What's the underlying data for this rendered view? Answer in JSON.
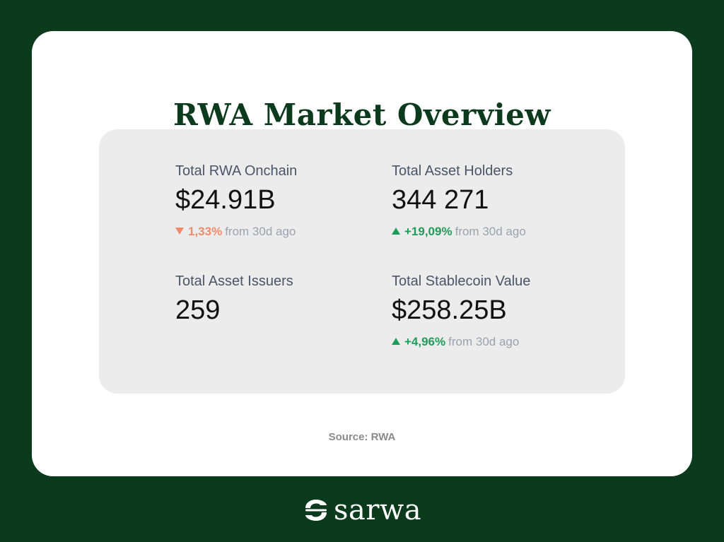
{
  "title": "RWA Market Overview",
  "metrics": [
    {
      "label": "Total RWA Onchain",
      "value": "$24.91B",
      "change": "1,33%",
      "direction": "down",
      "since": "from 30d ago"
    },
    {
      "label": "Total Asset Holders",
      "value": "344 271",
      "change": "+19,09%",
      "direction": "up",
      "since": "from 30d ago"
    },
    {
      "label": "Total Asset Issuers",
      "value": "259"
    },
    {
      "label": "Total Stablecoin Value",
      "value": "$258.25B",
      "change": "+4,96%",
      "direction": "up",
      "since": "from 30d ago"
    }
  ],
  "source": "Source: RWA",
  "brand": {
    "name": "sarwa",
    "logo_icon": "sarwa-logo-icon"
  },
  "colors": {
    "background": "#0c3a1c",
    "card": "#ffffff",
    "panel": "#ececec",
    "down": "#f08a6a",
    "up": "#1f9d5a"
  }
}
